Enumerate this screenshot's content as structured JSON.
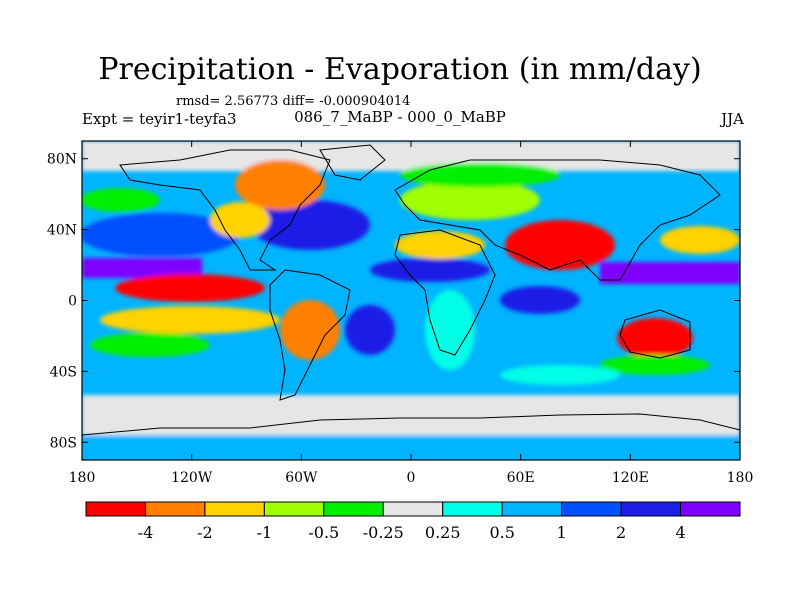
{
  "title": "Precipitation - Evaporation (in mm/day)",
  "stats": "rmsd= 2.56773 diff= -0.000904014",
  "experiment": "Expt = teyir1-teyfa3",
  "comparison": "086_7_MaBP - 000_0_MaBP",
  "season": "JJA",
  "lat_ticks": [
    {
      "label": "80N",
      "lat": 80
    },
    {
      "label": "40N",
      "lat": 40
    },
    {
      "label": "0",
      "lat": 0
    },
    {
      "label": "40S",
      "lat": -40
    },
    {
      "label": "80S",
      "lat": -80
    }
  ],
  "lon_ticks": [
    {
      "label": "180",
      "lon": -180
    },
    {
      "label": "120W",
      "lon": -120
    },
    {
      "label": "60W",
      "lon": -60
    },
    {
      "label": "0",
      "lon": 0
    },
    {
      "label": "60E",
      "lon": 60
    },
    {
      "label": "120E",
      "lon": 120
    },
    {
      "label": "180",
      "lon": 180
    }
  ],
  "colorbar": {
    "colors": [
      "#ff0000",
      "#ff8000",
      "#ffd200",
      "#a0ff00",
      "#00f000",
      "#e6e6e6",
      "#00ffe6",
      "#00b4ff",
      "#0050ff",
      "#1e1ee6",
      "#8000ff"
    ],
    "labels": [
      "-4",
      "-2",
      "-1",
      "-0.5",
      "-0.25",
      "0.25",
      "0.5",
      "1",
      "2",
      "4"
    ]
  }
}
